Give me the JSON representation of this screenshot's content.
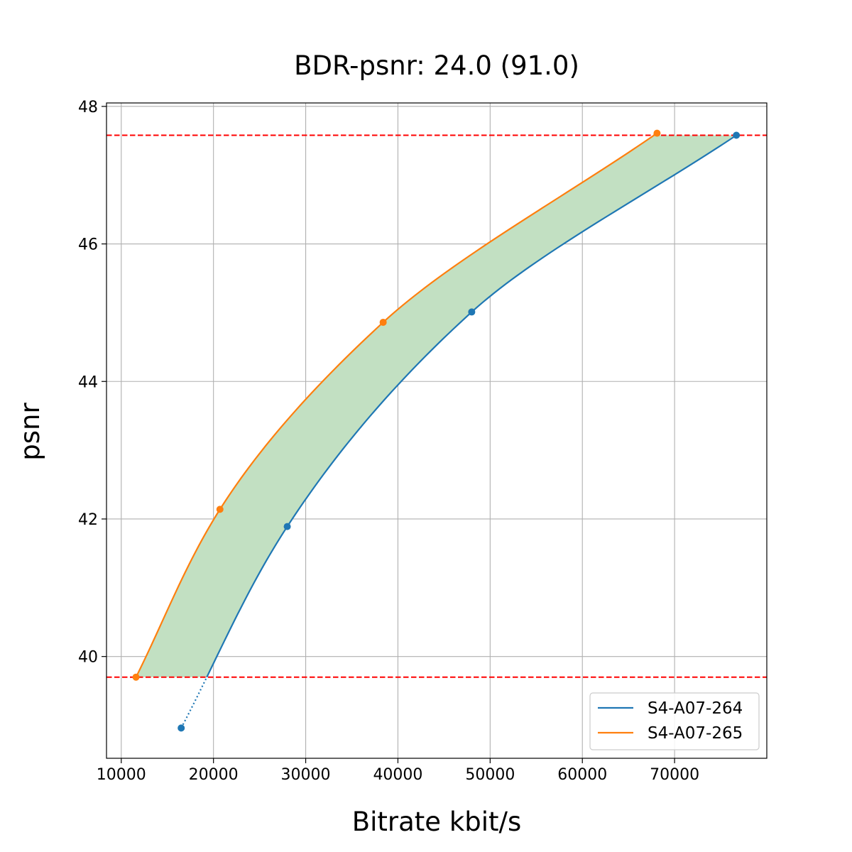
{
  "chart_data": {
    "type": "line",
    "title": "BDR-psnr: 24.0 (91.0)",
    "xlabel": "Bitrate kbit/s",
    "ylabel": "psnr",
    "xlim": [
      8400,
      80000
    ],
    "ylim": [
      38.52,
      48.05
    ],
    "xticks": [
      10000,
      20000,
      30000,
      40000,
      50000,
      60000,
      70000
    ],
    "xtick_labels": [
      "10000",
      "20000",
      "30000",
      "40000",
      "50000",
      "60000",
      "70000"
    ],
    "yticks": [
      40,
      42,
      44,
      46,
      48
    ],
    "ytick_labels": [
      "40",
      "42",
      "44",
      "46",
      "48"
    ],
    "grid": true,
    "legend_position": "lower-right",
    "series": [
      {
        "name": "S4-A07-264",
        "color": "#1f77b4",
        "x": [
          16500,
          28000,
          48000,
          76700
        ],
        "y": [
          38.96,
          41.89,
          45.01,
          47.58
        ]
      },
      {
        "name": "S4-A07-265",
        "color": "#ff7f0e",
        "x": [
          11600,
          20700,
          38400,
          68100
        ],
        "y": [
          39.7,
          42.14,
          44.86,
          47.61
        ]
      }
    ],
    "reference_lines": {
      "color": "#ff0000",
      "style": "dashed",
      "y": [
        39.7,
        47.58
      ]
    },
    "fill_color": "#c2e0c2"
  }
}
